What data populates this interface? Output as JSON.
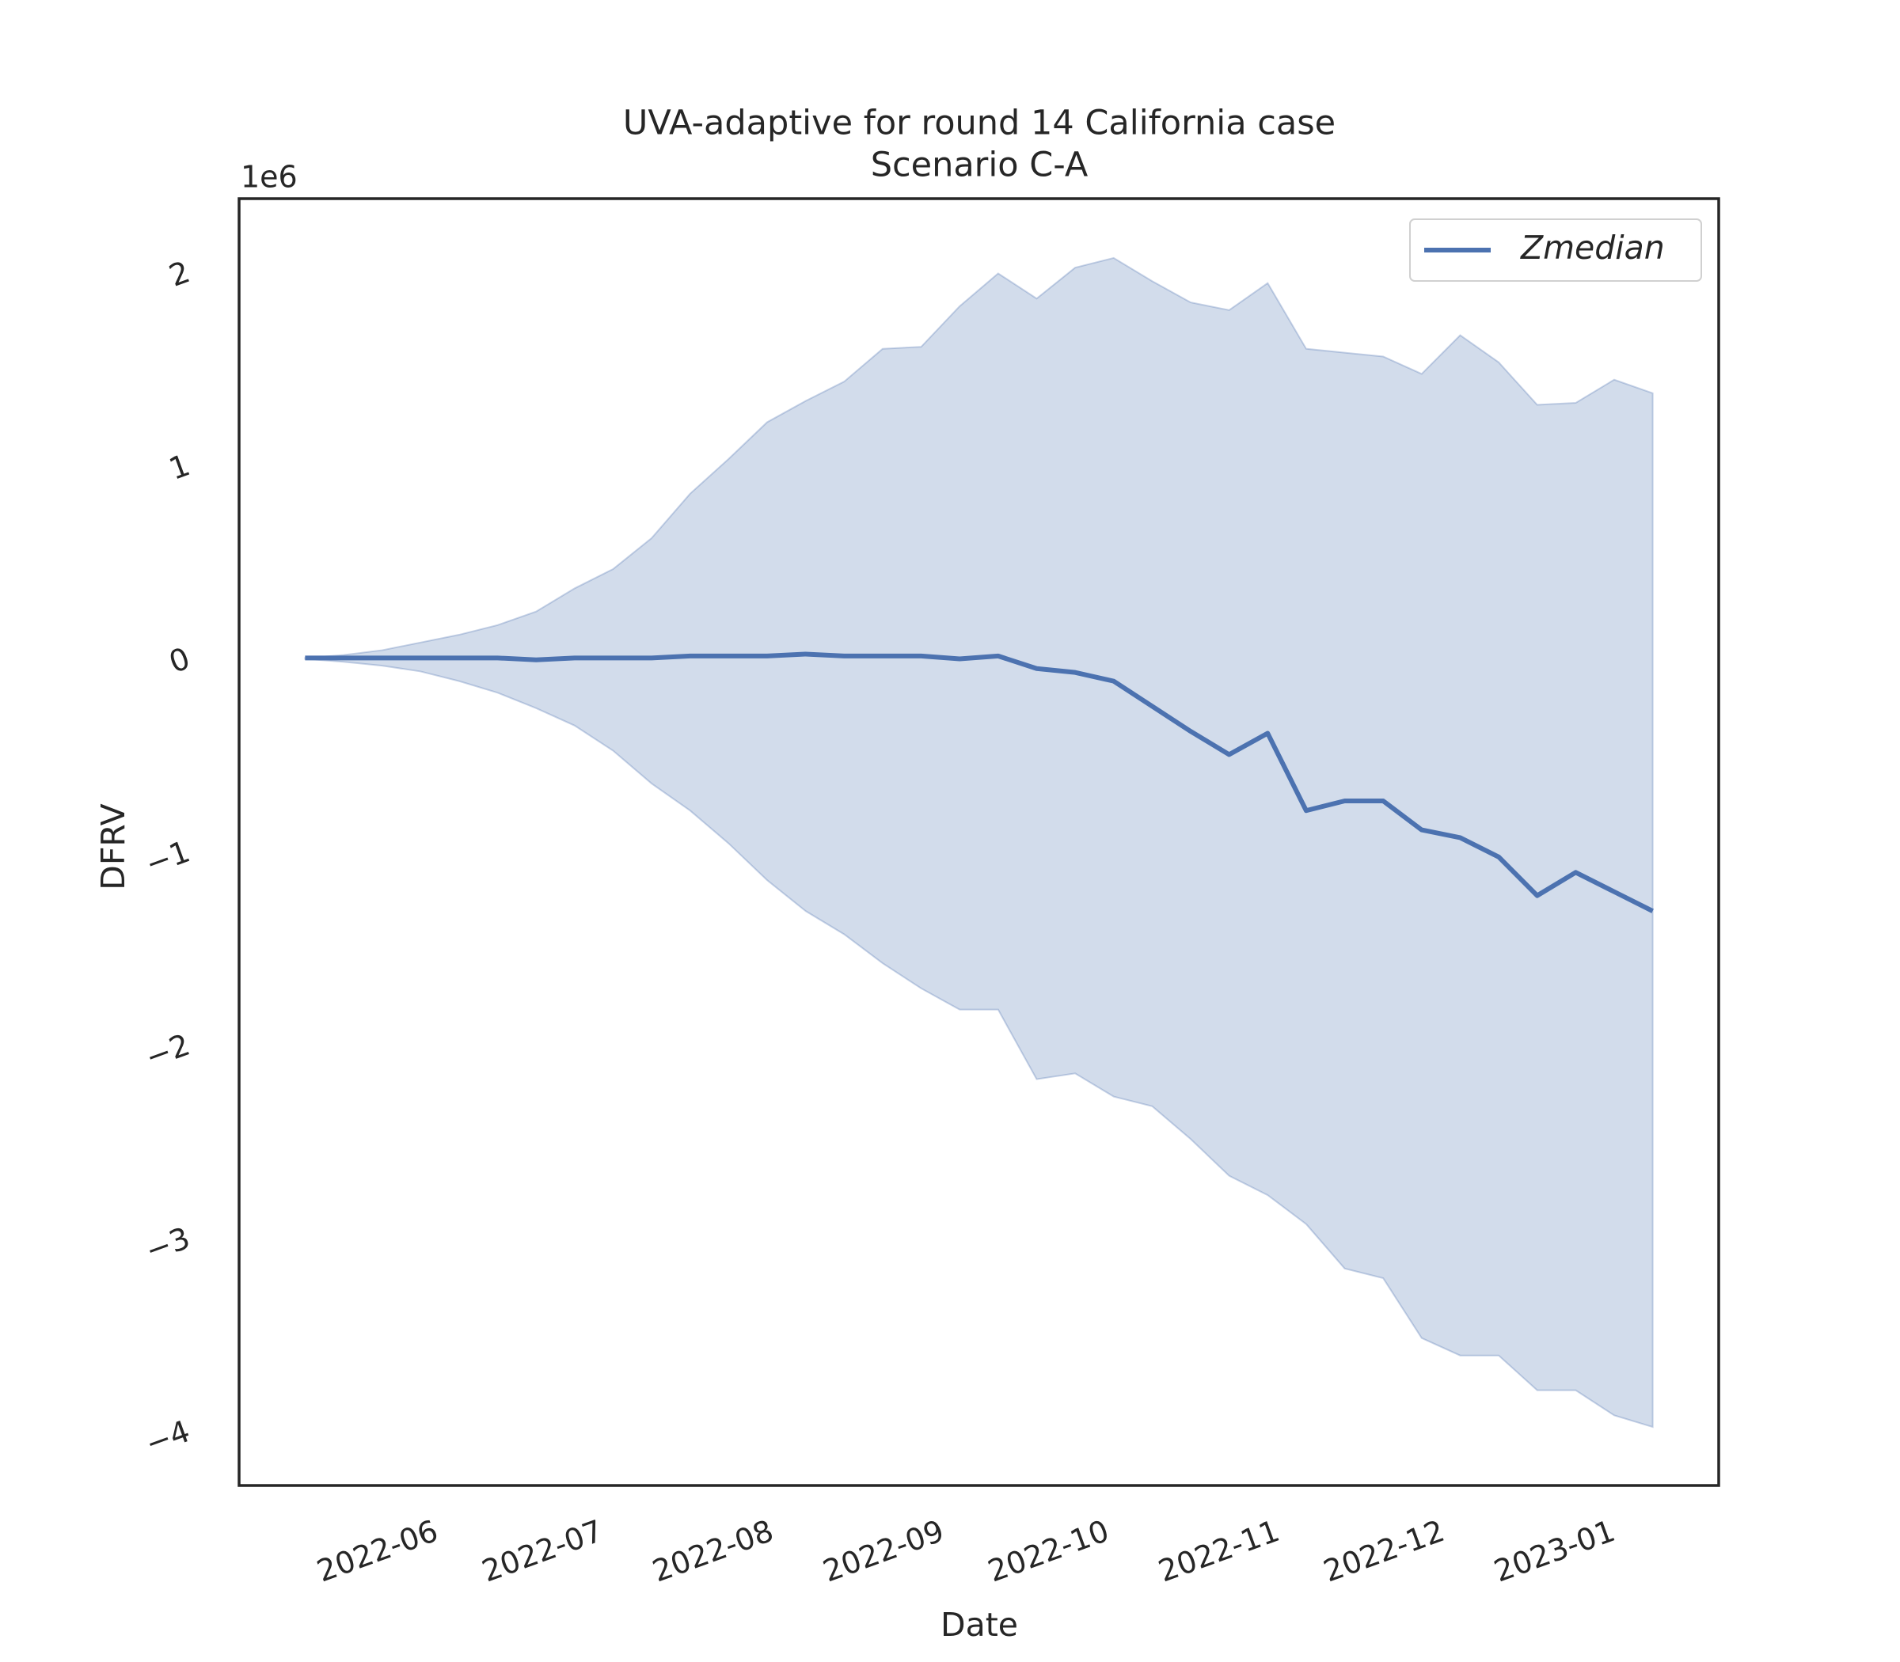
{
  "chart_data": {
    "type": "line",
    "title": "UVA-adaptive for round 14 California case",
    "subtitle": "Scenario C-A",
    "xlabel": "Date",
    "ylabel": "DFRV",
    "y_offset_label": "1e6",
    "x": [
      "2022-05-08",
      "2022-05-15",
      "2022-05-22",
      "2022-05-29",
      "2022-06-05",
      "2022-06-12",
      "2022-06-19",
      "2022-06-26",
      "2022-07-03",
      "2022-07-10",
      "2022-07-17",
      "2022-07-24",
      "2022-07-31",
      "2022-08-07",
      "2022-08-14",
      "2022-08-21",
      "2022-08-28",
      "2022-09-04",
      "2022-09-11",
      "2022-09-18",
      "2022-09-25",
      "2022-10-02",
      "2022-10-09",
      "2022-10-16",
      "2022-10-23",
      "2022-10-30",
      "2022-11-06",
      "2022-11-13",
      "2022-11-20",
      "2022-11-27",
      "2022-12-04",
      "2022-12-11",
      "2022-12-18",
      "2022-12-25",
      "2023-01-01",
      "2023-01-08"
    ],
    "series": [
      {
        "name": "Zmedian",
        "color": "#4c72b0",
        "values": [
          30000,
          30000,
          30000,
          30000,
          30000,
          30000,
          20000,
          30000,
          30000,
          30000,
          40000,
          40000,
          40000,
          50000,
          40000,
          40000,
          40000,
          25000,
          40000,
          -25000,
          -45000,
          -90000,
          -220000,
          -350000,
          -470000,
          -360000,
          -760000,
          -710000,
          -710000,
          -860000,
          -900000,
          -1000000,
          -1200000,
          -1080000,
          -1180000,
          -1280000
        ]
      }
    ],
    "band": {
      "color": "#4c72b0",
      "upper": [
        30000,
        45000,
        70000,
        110000,
        150000,
        200000,
        270000,
        390000,
        490000,
        650000,
        880000,
        1060000,
        1250000,
        1360000,
        1460000,
        1630000,
        1640000,
        1850000,
        2020000,
        1890000,
        2050000,
        2100000,
        1980000,
        1870000,
        1830000,
        1970000,
        1630000,
        1610000,
        1590000,
        1500000,
        1700000,
        1560000,
        1340000,
        1350000,
        1470000,
        1400000
      ],
      "lower": [
        25000,
        10000,
        -10000,
        -40000,
        -90000,
        -150000,
        -230000,
        -320000,
        -450000,
        -620000,
        -760000,
        -930000,
        -1120000,
        -1280000,
        -1400000,
        -1550000,
        -1680000,
        -1790000,
        -1790000,
        -2150000,
        -2120000,
        -2240000,
        -2290000,
        -2460000,
        -2650000,
        -2750000,
        -2900000,
        -3130000,
        -3180000,
        -3490000,
        -3580000,
        -3580000,
        -3760000,
        -3760000,
        -3890000,
        -3950000
      ]
    },
    "xlim": [
      "2022-04-26",
      "2023-01-20"
    ],
    "xticks": [
      "2022-06",
      "2022-07",
      "2022-08",
      "2022-09",
      "2022-10",
      "2022-11",
      "2022-12",
      "2023-01"
    ],
    "ylim": [
      -4253000,
      2407000
    ],
    "yticks": [
      {
        "value": -4000000,
        "label": "−4"
      },
      {
        "value": -3000000,
        "label": "−3"
      },
      {
        "value": -2000000,
        "label": "−2"
      },
      {
        "value": -1000000,
        "label": "−1"
      },
      {
        "value": 0,
        "label": "0"
      },
      {
        "value": 1000000,
        "label": "1"
      },
      {
        "value": 2000000,
        "label": "2"
      }
    ],
    "grid": false,
    "legend": "upper right"
  }
}
